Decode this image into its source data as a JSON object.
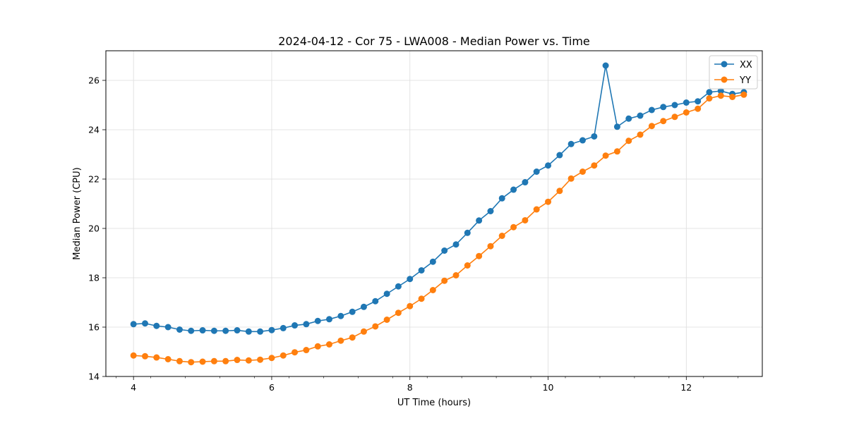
{
  "chart_data": {
    "type": "line",
    "title": "2024-04-12 - Cor 75 - LWA008 - Median Power vs. Time",
    "xlabel": "UT Time (hours)",
    "ylabel": "Median Power (CPU)",
    "xlim": [
      3.6,
      13.1
    ],
    "ylim": [
      14.0,
      27.2
    ],
    "xticks": [
      4,
      6,
      8,
      10,
      12
    ],
    "yticks": [
      14,
      16,
      18,
      20,
      22,
      24,
      26
    ],
    "grid": true,
    "legend_position": "top-right",
    "x": [
      4.0,
      4.167,
      4.333,
      4.5,
      4.667,
      4.833,
      5.0,
      5.167,
      5.333,
      5.5,
      5.667,
      5.833,
      6.0,
      6.167,
      6.333,
      6.5,
      6.667,
      6.833,
      7.0,
      7.167,
      7.333,
      7.5,
      7.667,
      7.833,
      8.0,
      8.167,
      8.333,
      8.5,
      8.667,
      8.833,
      9.0,
      9.167,
      9.333,
      9.5,
      9.667,
      9.833,
      10.0,
      10.167,
      10.333,
      10.5,
      10.667,
      10.833,
      11.0,
      11.167,
      11.333,
      11.5,
      11.667,
      11.833,
      12.0,
      12.167,
      12.333,
      12.5,
      12.667,
      12.833
    ],
    "series": [
      {
        "name": "XX",
        "color": "#1f77b4",
        "values": [
          16.12,
          16.15,
          16.05,
          16.0,
          15.9,
          15.85,
          15.87,
          15.85,
          15.85,
          15.87,
          15.82,
          15.82,
          15.88,
          15.96,
          16.07,
          16.12,
          16.25,
          16.32,
          16.45,
          16.62,
          16.82,
          17.05,
          17.35,
          17.65,
          17.95,
          18.3,
          18.65,
          19.1,
          19.35,
          19.82,
          20.32,
          20.7,
          21.22,
          21.57,
          21.87,
          22.3,
          22.55,
          22.97,
          23.42,
          23.57,
          23.73,
          26.6,
          24.12,
          24.45,
          24.57,
          24.8,
          24.92,
          25.0,
          25.1,
          25.15,
          25.52,
          25.57,
          25.45,
          25.52
        ]
      },
      {
        "name": "YY",
        "color": "#ff7f0e",
        "values": [
          14.85,
          14.82,
          14.77,
          14.7,
          14.62,
          14.58,
          14.6,
          14.62,
          14.62,
          14.67,
          14.65,
          14.68,
          14.75,
          14.85,
          14.98,
          15.07,
          15.22,
          15.3,
          15.45,
          15.58,
          15.82,
          16.03,
          16.3,
          16.58,
          16.85,
          17.15,
          17.5,
          17.88,
          18.1,
          18.5,
          18.88,
          19.28,
          19.7,
          20.05,
          20.33,
          20.77,
          21.08,
          21.52,
          22.02,
          22.3,
          22.55,
          22.95,
          23.12,
          23.55,
          23.8,
          24.15,
          24.35,
          24.52,
          24.7,
          24.85,
          25.27,
          25.38,
          25.33,
          25.42
        ]
      }
    ]
  }
}
